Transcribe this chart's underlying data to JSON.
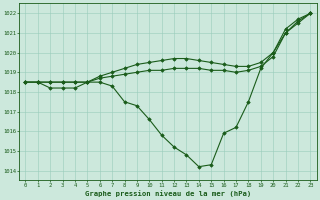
{
  "title": "Graphe pression niveau de la mer (hPa)",
  "bg_color": "#cce8dc",
  "grid_color": "#99ccbb",
  "line_color": "#1a5c1a",
  "marker_color": "#1a5c1a",
  "xlim": [
    -0.5,
    23.5
  ],
  "ylim": [
    1013.5,
    1022.5
  ],
  "yticks": [
    1014,
    1015,
    1016,
    1017,
    1018,
    1019,
    1020,
    1021,
    1022
  ],
  "xticks": [
    0,
    1,
    2,
    3,
    4,
    5,
    6,
    7,
    8,
    9,
    10,
    11,
    12,
    13,
    14,
    15,
    16,
    17,
    18,
    19,
    20,
    21,
    22,
    23
  ],
  "series": [
    [
      1018.5,
      1018.5,
      1018.2,
      1018.2,
      1018.2,
      1018.5,
      1018.5,
      1018.3,
      1017.5,
      1017.3,
      1016.6,
      1015.8,
      1015.2,
      1014.8,
      1014.2,
      1014.3,
      1015.9,
      1016.2,
      1017.5,
      1019.2,
      1020.0,
      1021.0,
      1021.5,
      1022.0
    ],
    [
      1018.5,
      1018.5,
      1018.5,
      1018.5,
      1018.5,
      1018.5,
      1018.7,
      1018.8,
      1018.9,
      1019.0,
      1019.1,
      1019.1,
      1019.2,
      1019.2,
      1019.2,
      1019.1,
      1019.1,
      1019.0,
      1019.1,
      1019.3,
      1019.8,
      1021.0,
      1021.6,
      1022.0
    ],
    [
      1018.5,
      1018.5,
      1018.5,
      1018.5,
      1018.5,
      1018.5,
      1018.8,
      1019.0,
      1019.2,
      1019.4,
      1019.5,
      1019.6,
      1019.7,
      1019.7,
      1019.6,
      1019.5,
      1019.4,
      1019.3,
      1019.3,
      1019.5,
      1020.0,
      1021.2,
      1021.7,
      1022.0
    ]
  ]
}
